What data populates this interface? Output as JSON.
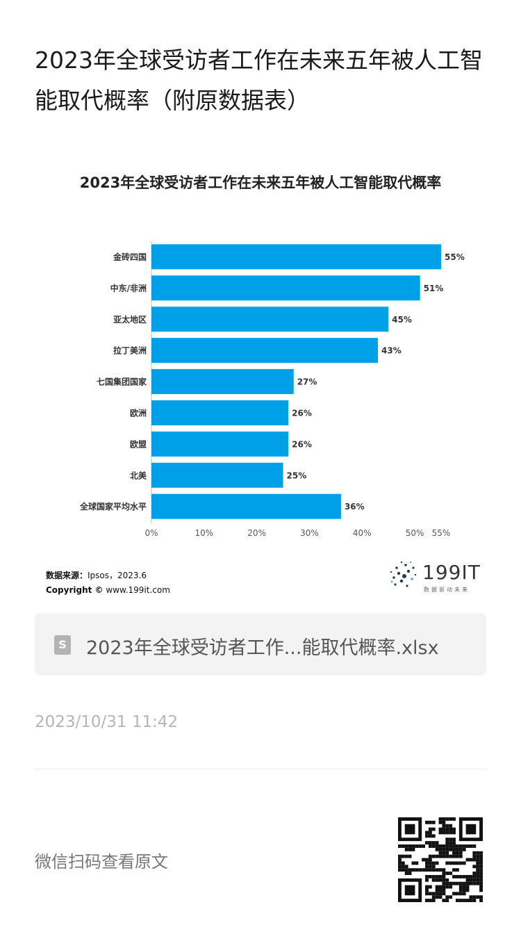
{
  "article": {
    "title": "2023年全球受访者工作在未来五年被人工智能取代概率（附原数据表）",
    "file_name": "2023年全球受访者工作...能取代概率.xlsx",
    "timestamp": "2023/10/31 11:42",
    "scan_text": "微信扫码查看原文"
  },
  "chart_data": {
    "type": "bar",
    "orientation": "horizontal",
    "title": "2023年全球受访者工作在未来五年被人工智能取代概率",
    "categories": [
      "金砖四国",
      "中东/非洲",
      "亚太地区",
      "拉丁美洲",
      "七国集团国家",
      "欧洲",
      "欧盟",
      "北美",
      "全球国家平均水平"
    ],
    "values": [
      55,
      51,
      45,
      43,
      27,
      26,
      26,
      25,
      36
    ],
    "value_labels": [
      "55%",
      "51%",
      "45%",
      "43%",
      "27%",
      "26%",
      "26%",
      "25%",
      "36%"
    ],
    "x_ticks": [
      0,
      10,
      20,
      30,
      40,
      50,
      55
    ],
    "x_tick_labels": [
      "0%",
      "10%",
      "20%",
      "30%",
      "40%",
      "50%",
      "55%"
    ],
    "xlim": [
      0,
      55
    ],
    "grid": false,
    "bar_color": "#00a0e9"
  },
  "source": {
    "label": "数据来源：",
    "text": "Ipsos，2023.6",
    "copyright_label": "Copyright ©",
    "copyright_text": "www.199it.com"
  },
  "logo": {
    "text": "199IT",
    "sub": "数据驱动未来"
  }
}
